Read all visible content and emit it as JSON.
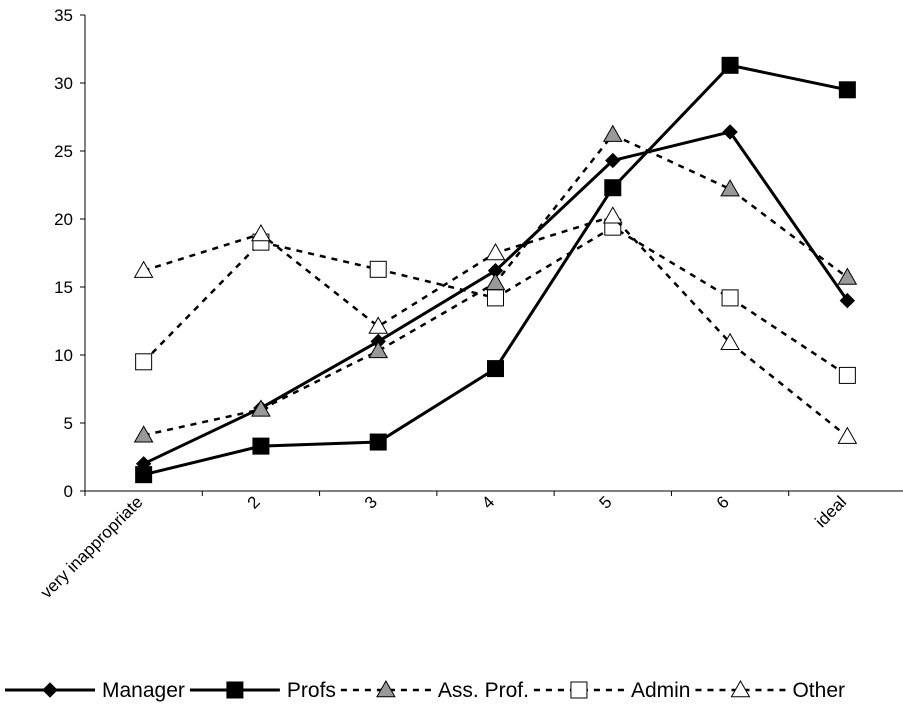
{
  "chart_data": {
    "type": "line",
    "title": "",
    "xlabel": "",
    "ylabel": "",
    "categories": [
      "very inappropriate",
      "2",
      "3",
      "4",
      "5",
      "6",
      "ideal"
    ],
    "ylim": [
      0,
      35
    ],
    "yticks": [
      0,
      5,
      10,
      15,
      20,
      25,
      30,
      35
    ],
    "grid": false,
    "legend_position": "bottom",
    "series": [
      {
        "name": "Manager",
        "values": [
          2.0,
          6.1,
          11.0,
          16.2,
          24.3,
          26.4,
          14.0
        ],
        "color": "#000000",
        "line": "solid",
        "marker": "diamond",
        "marker_fill": "#000000"
      },
      {
        "name": "Profs",
        "values": [
          1.2,
          3.3,
          3.6,
          9.0,
          22.3,
          31.3,
          29.5
        ],
        "color": "#000000",
        "line": "solid",
        "marker": "square",
        "marker_fill": "#000000"
      },
      {
        "name": "Ass. Prof.",
        "values": [
          4.1,
          6.0,
          10.3,
          15.3,
          26.2,
          22.2,
          15.7
        ],
        "color": "#000000",
        "line": "dashed",
        "marker": "triangle",
        "marker_fill": "#999999"
      },
      {
        "name": "Admin",
        "values": [
          9.5,
          18.3,
          16.3,
          14.2,
          19.4,
          14.2,
          8.5
        ],
        "color": "#000000",
        "line": "dashed",
        "marker": "square",
        "marker_fill": "#ffffff"
      },
      {
        "name": "Other",
        "values": [
          16.2,
          18.9,
          12.1,
          17.5,
          20.2,
          10.9,
          4.0
        ],
        "color": "#000000",
        "line": "dashed",
        "marker": "triangle",
        "marker_fill": "#ffffff"
      }
    ]
  }
}
